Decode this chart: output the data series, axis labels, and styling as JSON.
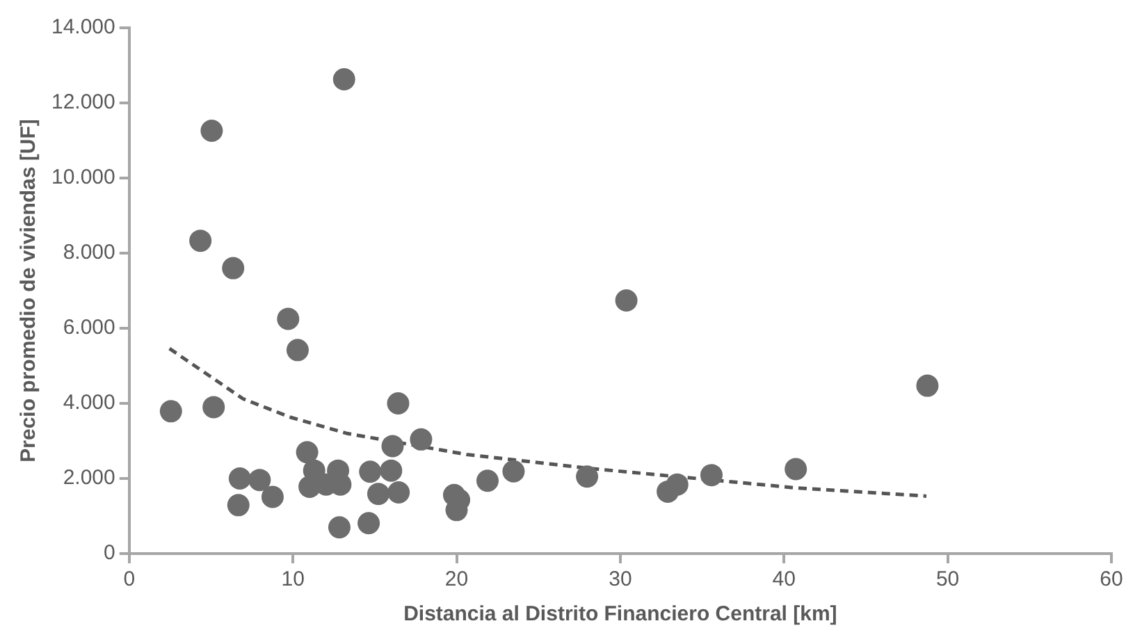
{
  "chart_data": {
    "type": "scatter",
    "xlabel": "Distancia al Distrito Financiero Central [km]",
    "ylabel": "Precio promedio de viviendas [UF]",
    "xlim": [
      0,
      60
    ],
    "xticks": [
      0,
      10,
      20,
      30,
      40,
      50,
      60
    ],
    "ylim": [
      0,
      14000
    ],
    "yticks": [
      {
        "value": 0,
        "label": "0"
      },
      {
        "value": 2000,
        "label": "2.000"
      },
      {
        "value": 4000,
        "label": "4.000"
      },
      {
        "value": 6000,
        "label": "6.000"
      },
      {
        "value": 8000,
        "label": "8.000"
      },
      {
        "value": 10000,
        "label": "10.000"
      },
      {
        "value": 12000,
        "label": "12.000"
      },
      {
        "value": 14000,
        "label": "14.000"
      }
    ],
    "grid": false,
    "legend": false,
    "marker": "circle",
    "series": [
      {
        "color": "#6d6d6d",
        "x": [
          2.55,
          4.35,
          5.04,
          5.16,
          6.35,
          9.71,
          10.29,
          16.43,
          17.83,
          16.09,
          10.87,
          6.76,
          7.97,
          8.76,
          6.67,
          11.3,
          11.02,
          12.03,
          12.76,
          12.9,
          12.84,
          13.13,
          14.63,
          14.72,
          16.0,
          15.22,
          16.46,
          19.85,
          20.15,
          20.0,
          21.89,
          23.48,
          27.97,
          30.37,
          32.9,
          33.48,
          35.57,
          40.72,
          48.76
        ],
        "values": [
          3790,
          8330,
          11260,
          3900,
          7600,
          6250,
          5420,
          4000,
          3040,
          2860,
          2700,
          2000,
          1960,
          1510,
          1290,
          2210,
          1780,
          1840,
          2210,
          1840,
          700,
          12630,
          810,
          2180,
          2210,
          1590,
          1630,
          1560,
          1430,
          1160,
          1940,
          2190,
          2050,
          6740,
          1650,
          1840,
          2090,
          2250,
          4470
        ]
      },
      {
        "type": "line",
        "color": "#555555",
        "line_style": "dashed",
        "marker": "none",
        "x": [
          2.46,
          6.96,
          9.85,
          13.3,
          20.6,
          28.1,
          35.65,
          40.7,
          48.7
        ],
        "values": [
          5460,
          4120,
          3630,
          3200,
          2640,
          2270,
          1960,
          1750,
          1530
        ]
      }
    ]
  }
}
